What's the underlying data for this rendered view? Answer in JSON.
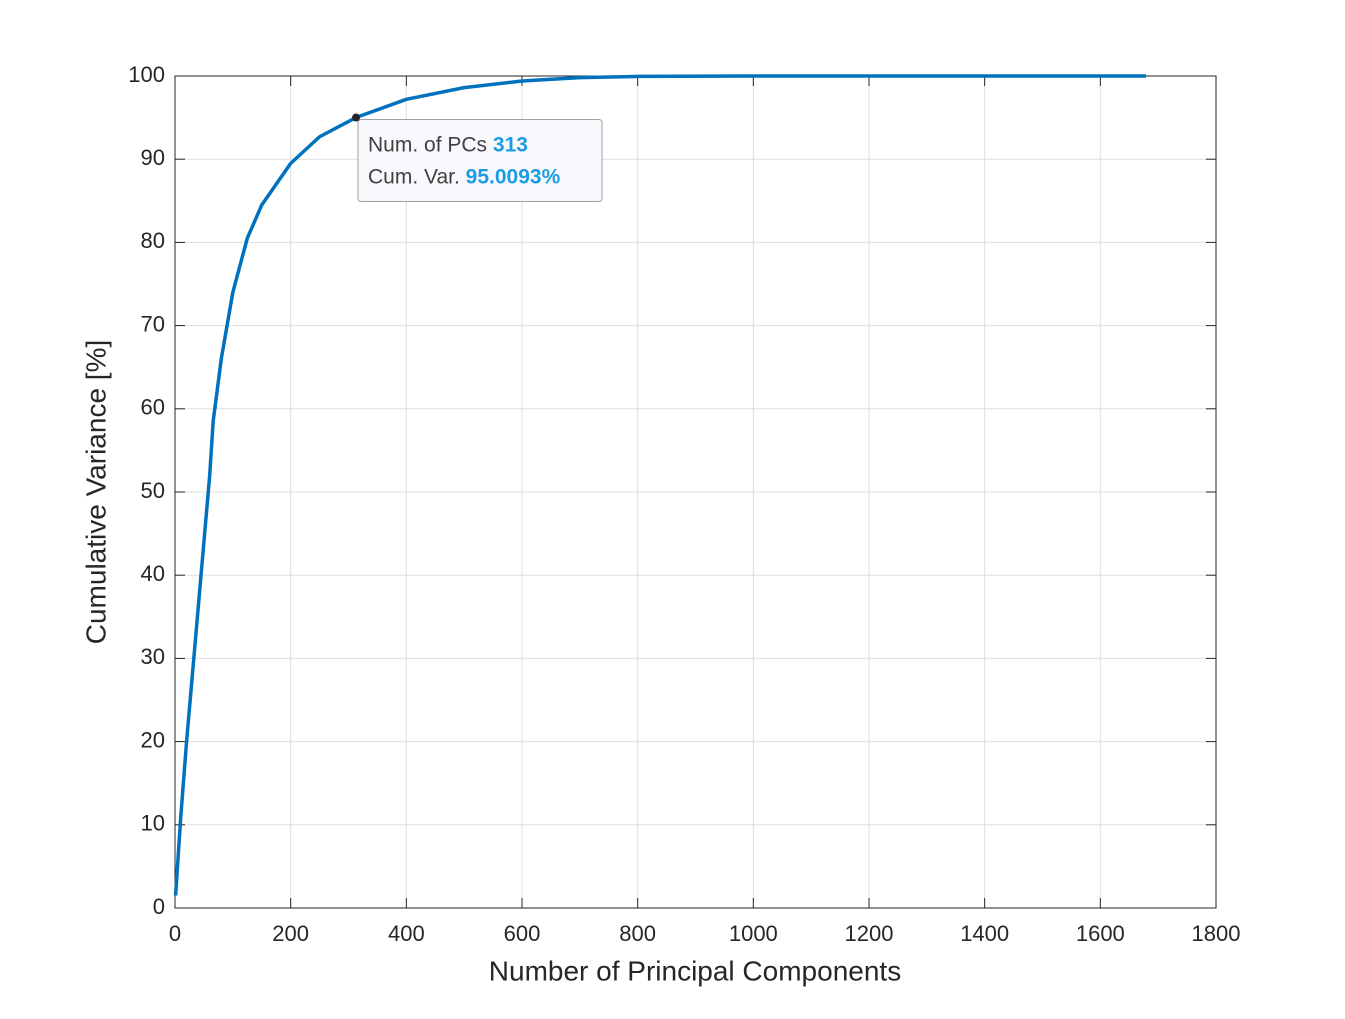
{
  "chart_data": {
    "type": "line",
    "xlabel": "Number of Principal Components",
    "ylabel": "Cumulative Variance [%]",
    "x": [
      1,
      10,
      20,
      30,
      40,
      50,
      60,
      66,
      80,
      100,
      125,
      150,
      200,
      250,
      313,
      400,
      500,
      600,
      700,
      800,
      1000,
      1200,
      1400,
      1679
    ],
    "series": [
      {
        "color": "#0072bd",
        "values": [
          1.5,
          11,
          20,
          28,
          36,
          44,
          52,
          58.5,
          66,
          74,
          80.5,
          84.5,
          89.5,
          92.7,
          95.0093,
          97.2,
          98.6,
          99.4,
          99.8,
          99.95,
          100,
          100,
          100,
          100
        ]
      }
    ],
    "xlim": [
      0,
      1800
    ],
    "xticks": [
      0,
      200,
      400,
      600,
      800,
      1000,
      1200,
      1400,
      1600,
      1800
    ],
    "ylim": [
      0,
      100
    ],
    "yticks": [
      0,
      10,
      20,
      30,
      40,
      50,
      60,
      70,
      80,
      90,
      100
    ],
    "grid": true,
    "annotation": {
      "x": 313,
      "y": 95.0093,
      "x_label": "Num. of PCs",
      "y_label": "Cum. Var.",
      "y_value_label": "95.0093%"
    }
  }
}
